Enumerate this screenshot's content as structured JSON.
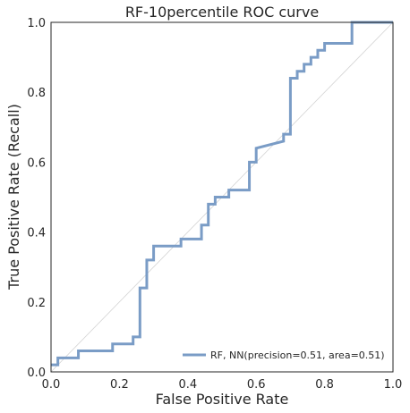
{
  "chart_data": {
    "type": "line",
    "title": "RF-10percentile ROC curve",
    "xlabel": "False Positive Rate",
    "ylabel": "True Positive Rate (Recall)",
    "xlim": [
      0.0,
      1.0
    ],
    "ylim": [
      0.0,
      1.0
    ],
    "xticks": [
      "0.0",
      "0.2",
      "0.4",
      "0.6",
      "0.8",
      "1.0"
    ],
    "yticks": [
      "0.0",
      "0.2",
      "0.4",
      "0.6",
      "0.8",
      "1.0"
    ],
    "grid": false,
    "legend_position": "lower-right",
    "diagonal_color": "#d3d3d3",
    "series": [
      {
        "name": "RF, NN(precision=0.51, area=0.51)",
        "color": "#7a9cc6",
        "x": [
          0.0,
          0.02,
          0.02,
          0.08,
          0.08,
          0.18,
          0.18,
          0.24,
          0.24,
          0.26,
          0.26,
          0.28,
          0.28,
          0.3,
          0.3,
          0.38,
          0.38,
          0.44,
          0.44,
          0.46,
          0.46,
          0.48,
          0.48,
          0.52,
          0.52,
          0.58,
          0.58,
          0.6,
          0.6,
          0.68,
          0.68,
          0.7,
          0.7,
          0.72,
          0.72,
          0.74,
          0.74,
          0.76,
          0.76,
          0.78,
          0.78,
          0.8,
          0.8,
          0.88,
          0.88,
          1.0
        ],
        "y": [
          0.02,
          0.02,
          0.04,
          0.04,
          0.06,
          0.06,
          0.08,
          0.08,
          0.1,
          0.1,
          0.24,
          0.24,
          0.32,
          0.32,
          0.36,
          0.36,
          0.38,
          0.38,
          0.42,
          0.42,
          0.48,
          0.48,
          0.5,
          0.5,
          0.52,
          0.52,
          0.6,
          0.6,
          0.64,
          0.66,
          0.68,
          0.68,
          0.84,
          0.84,
          0.86,
          0.86,
          0.88,
          0.88,
          0.9,
          0.9,
          0.92,
          0.92,
          0.94,
          0.94,
          1.0,
          1.0
        ]
      }
    ]
  }
}
